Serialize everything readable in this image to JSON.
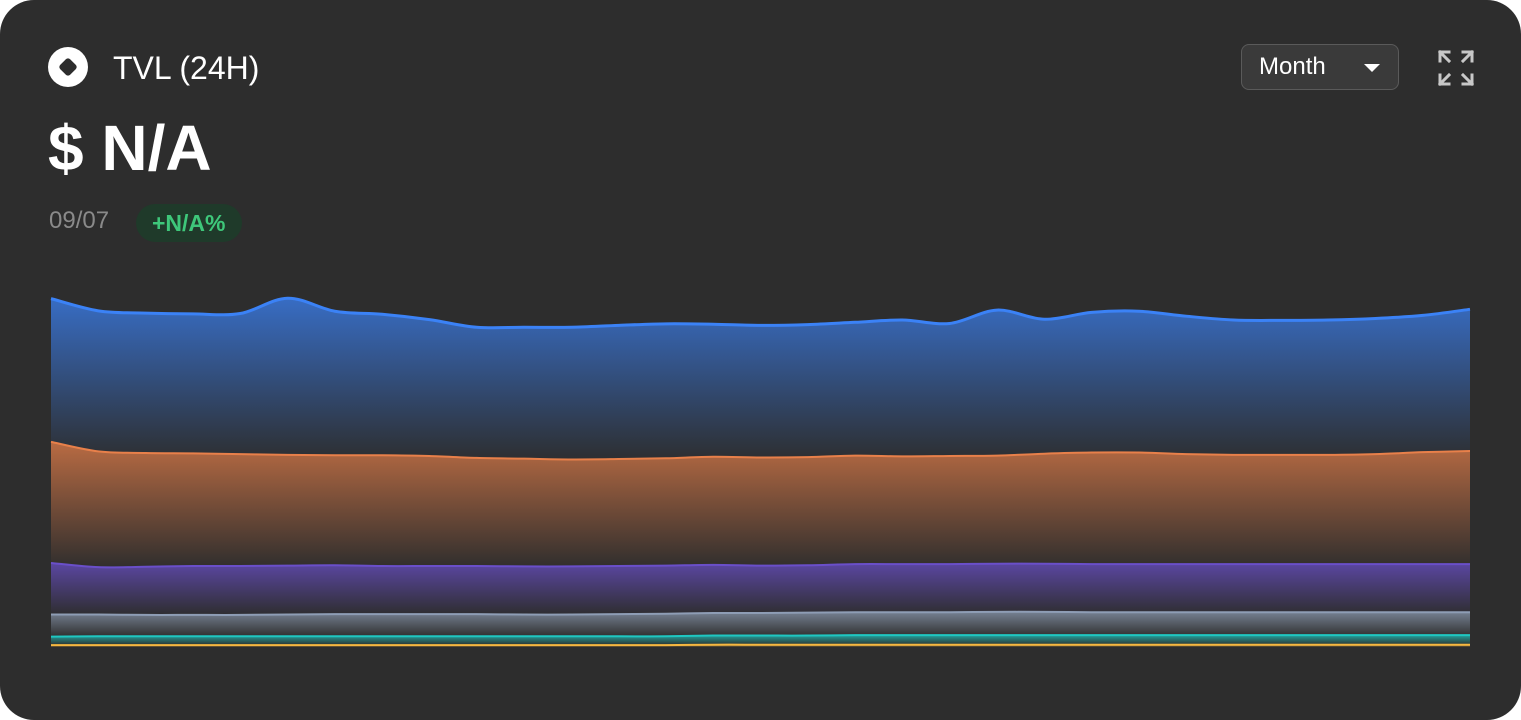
{
  "header": {
    "title": "TVL (24H)",
    "value": "$ N/A",
    "date": "09/07",
    "change": "+N/A%",
    "period": {
      "selected": "Month"
    },
    "icons": {
      "token": "token-diamond-icon",
      "dropdown": "caret-down-icon",
      "expand": "expand-icon"
    }
  },
  "chart_data": {
    "type": "area",
    "stacked": true,
    "grid": false,
    "legend": "none",
    "ylim": [
      0,
      100
    ],
    "x": [
      0,
      1,
      2,
      3,
      4,
      5,
      6,
      7,
      8,
      9,
      10,
      11,
      12,
      13,
      14,
      15,
      16,
      17,
      18,
      19,
      20,
      21,
      22,
      23,
      24,
      25,
      26,
      27,
      28,
      29,
      30
    ],
    "series": [
      {
        "color": "#f5b740",
        "values": [
          0.5,
          0.5,
          0.5,
          0.5,
          0.5,
          0.5,
          0.5,
          0.5,
          0.5,
          0.5,
          0.5,
          0.5,
          0.5,
          0.5,
          0.6,
          0.6,
          0.6,
          0.6,
          0.6,
          0.6,
          0.6,
          0.6,
          0.6,
          0.6,
          0.6,
          0.6,
          0.6,
          0.6,
          0.6,
          0.6,
          0.6
        ]
      },
      {
        "color": "#1fc7c1",
        "values": [
          2.2,
          2.3,
          2.3,
          2.3,
          2.3,
          2.3,
          2.3,
          2.3,
          2.3,
          2.3,
          2.3,
          2.3,
          2.3,
          2.3,
          2.4,
          2.4,
          2.4,
          2.5,
          2.5,
          2.5,
          2.5,
          2.5,
          2.5,
          2.5,
          2.5,
          2.5,
          2.5,
          2.5,
          2.5,
          2.5,
          2.5
        ]
      },
      {
        "color": "#8e9db5",
        "values": [
          5.8,
          5.7,
          5.6,
          5.6,
          5.6,
          5.7,
          5.8,
          5.8,
          5.8,
          5.8,
          5.7,
          5.7,
          5.8,
          5.9,
          5.9,
          5.9,
          6.0,
          6.0,
          6.0,
          6.0,
          6.1,
          6.1,
          6.0,
          6.0,
          6.0,
          6.0,
          6.0,
          6.0,
          6.0,
          6.0,
          6.0
        ]
      },
      {
        "color": "#6a4fc9",
        "values": [
          13.5,
          12.4,
          12.6,
          12.8,
          12.8,
          12.8,
          12.8,
          12.6,
          12.6,
          12.6,
          12.6,
          12.6,
          12.6,
          12.6,
          12.6,
          12.4,
          12.4,
          12.6,
          12.6,
          12.6,
          12.6,
          12.6,
          12.6,
          12.6,
          12.6,
          12.6,
          12.6,
          12.6,
          12.6,
          12.6,
          12.6
        ]
      },
      {
        "color": "#e8804a",
        "values": [
          31.7,
          30.3,
          29.8,
          29.5,
          29.3,
          29.0,
          28.8,
          29.0,
          28.8,
          28.3,
          28.2,
          28.0,
          28.0,
          28.1,
          28.3,
          28.3,
          28.3,
          28.4,
          28.2,
          28.3,
          28.3,
          28.8,
          29.2,
          29.2,
          28.8,
          28.6,
          28.6,
          28.6,
          28.8,
          29.3,
          29.6
        ]
      },
      {
        "color": "#3b82f6",
        "values": [
          37.5,
          36.8,
          36.6,
          36.5,
          36.8,
          41.0,
          37.7,
          36.9,
          35.7,
          34.2,
          34.4,
          34.6,
          35.0,
          35.2,
          34.7,
          34.6,
          34.7,
          34.9,
          35.7,
          34.7,
          38.1,
          35.2,
          36.7,
          37.0,
          36.1,
          35.3,
          35.2,
          35.3,
          35.5,
          35.8,
          37.1
        ]
      }
    ]
  }
}
